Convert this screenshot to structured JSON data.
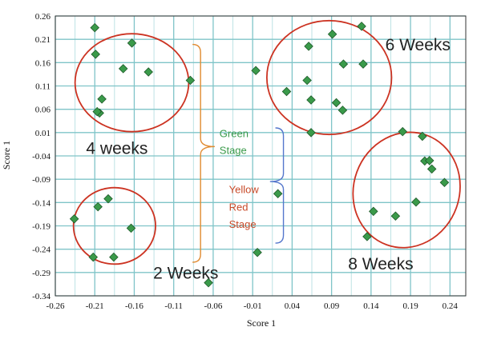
{
  "chart_data": {
    "type": "scatter",
    "xlabel": "Score 1",
    "ylabel": "Score 1",
    "xlim": [
      -0.26,
      0.26
    ],
    "ylim": [
      -0.34,
      0.26
    ],
    "x_ticks": [
      "-0.26",
      "-0.21",
      "-0.16",
      "-0.11",
      "-0.06",
      "-0.01",
      "0.04",
      "0.09",
      "0.14",
      "0.19",
      "0.24"
    ],
    "y_ticks": [
      "0.26",
      "0.21",
      "0.16",
      "0.11",
      "0.06",
      "0.01",
      "-0.04",
      "-0.09",
      "-0.14",
      "-0.19",
      "-0.24",
      "-0.29",
      "-0.34"
    ],
    "grid": true,
    "marker_color": "#3a9a4a",
    "marker_stroke": "#1f5a2a",
    "ellipse_color": "#cc3322",
    "points": [
      {
        "x": -0.21,
        "y": 0.235
      },
      {
        "x": -0.163,
        "y": 0.202
      },
      {
        "x": -0.209,
        "y": 0.178
      },
      {
        "x": -0.174,
        "y": 0.147
      },
      {
        "x": -0.142,
        "y": 0.14
      },
      {
        "x": -0.089,
        "y": 0.122
      },
      {
        "x": -0.201,
        "y": 0.082
      },
      {
        "x": -0.204,
        "y": 0.052
      },
      {
        "x": -0.207,
        "y": 0.055
      },
      {
        "x": -0.236,
        "y": -0.175
      },
      {
        "x": -0.193,
        "y": -0.132
      },
      {
        "x": -0.206,
        "y": -0.149
      },
      {
        "x": -0.164,
        "y": -0.195
      },
      {
        "x": -0.212,
        "y": -0.257
      },
      {
        "x": -0.186,
        "y": -0.257
      },
      {
        "x": -0.066,
        "y": -0.312
      },
      {
        "x": -0.006,
        "y": 0.143
      },
      {
        "x": 0.033,
        "y": 0.098
      },
      {
        "x": 0.061,
        "y": 0.195
      },
      {
        "x": 0.059,
        "y": 0.122
      },
      {
        "x": 0.064,
        "y": 0.08
      },
      {
        "x": 0.091,
        "y": 0.221
      },
      {
        "x": 0.105,
        "y": 0.157
      },
      {
        "x": 0.096,
        "y": 0.074
      },
      {
        "x": 0.104,
        "y": 0.058
      },
      {
        "x": 0.128,
        "y": 0.238
      },
      {
        "x": 0.13,
        "y": 0.157
      },
      {
        "x": 0.064,
        "y": 0.01
      },
      {
        "x": 0.022,
        "y": -0.121
      },
      {
        "x": -0.004,
        "y": -0.247
      },
      {
        "x": 0.18,
        "y": 0.012
      },
      {
        "x": 0.205,
        "y": 0.002
      },
      {
        "x": 0.208,
        "y": -0.051
      },
      {
        "x": 0.214,
        "y": -0.05
      },
      {
        "x": 0.217,
        "y": -0.068
      },
      {
        "x": 0.233,
        "y": -0.097
      },
      {
        "x": 0.197,
        "y": -0.139
      },
      {
        "x": 0.143,
        "y": -0.159
      },
      {
        "x": 0.171,
        "y": -0.169
      },
      {
        "x": 0.135,
        "y": -0.213
      }
    ],
    "ellipses": [
      {
        "name": "4-weeks",
        "cx": -0.163,
        "cy": 0.117,
        "rx": 0.072,
        "ry": 0.105
      },
      {
        "name": "2-weeks",
        "cx": -0.185,
        "cy": -0.19,
        "rx": 0.052,
        "ry": 0.082
      },
      {
        "name": "6-weeks",
        "cx": 0.087,
        "cy": 0.128,
        "rx": 0.079,
        "ry": 0.122
      },
      {
        "name": "8-weeks",
        "cx": 0.185,
        "cy": -0.113,
        "rx": 0.067,
        "ry": 0.125,
        "rotate": 20
      }
    ],
    "annotations": [
      {
        "name": "label-4-weeks",
        "text": "4 weeks",
        "x": -0.221,
        "y": -0.036,
        "size": 21,
        "color": "#222222"
      },
      {
        "name": "label-2-weeks",
        "text": "2 Weeks",
        "x": -0.136,
        "y": -0.303,
        "size": 21,
        "color": "#222222"
      },
      {
        "name": "label-6-weeks",
        "text": "6 Weeks",
        "x": 0.158,
        "y": 0.186,
        "size": 21,
        "color": "#222222"
      },
      {
        "name": "label-8-weeks",
        "text": "8 Weeks",
        "x": 0.111,
        "y": -0.283,
        "size": 21,
        "color": "#222222"
      },
      {
        "name": "label-green-stage-1",
        "text": "Green",
        "x": -0.052,
        "y": 0.0,
        "size": 13,
        "color": "#3a9a4a"
      },
      {
        "name": "label-green-stage-2",
        "text": "Stage",
        "x": -0.052,
        "y": -0.036,
        "size": 13,
        "color": "#3a9a4a"
      },
      {
        "name": "label-yellow-red-1",
        "text": "Yellow",
        "x": -0.04,
        "y": -0.12,
        "size": 13,
        "color": "#c84a28"
      },
      {
        "name": "label-yellow-red-2",
        "text": "Red",
        "x": -0.04,
        "y": -0.157,
        "size": 13,
        "color": "#c84a28"
      },
      {
        "name": "label-yellow-red-3",
        "text": "Stage",
        "x": -0.04,
        "y": -0.194,
        "size": 13,
        "color": "#c84a28"
      }
    ],
    "braces": [
      {
        "name": "green-stage-brace",
        "x": -0.076,
        "y_top": 0.199,
        "y_bottom": -0.268,
        "tip_y": -0.02,
        "tip_x": -0.058,
        "color": "#e08a30"
      },
      {
        "name": "yellow-red-stage-brace",
        "x": 0.029,
        "y_top": 0.02,
        "y_bottom": -0.227,
        "tip_y": -0.095,
        "tip_x": 0.012,
        "color": "#5577cc"
      }
    ]
  }
}
